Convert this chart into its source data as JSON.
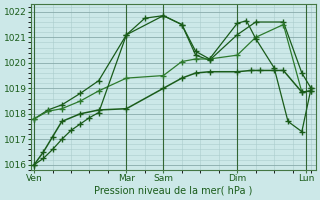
{
  "bg_color": "#cce8e8",
  "grid_color_minor": "#aacccc",
  "grid_color_major": "#88aaaa",
  "line_color": "#1a5c1a",
  "line_color2": "#2d7a2d",
  "ylabel_text": "Pression niveau de la mer( hPa )",
  "ylim": [
    1015.8,
    1022.3
  ],
  "yticks": [
    1016,
    1017,
    1018,
    1019,
    1020,
    1021,
    1022
  ],
  "xlim": [
    -0.3,
    30.5
  ],
  "day_labels": [
    "Ven",
    "Mar",
    "Sam",
    "Dim",
    "Lun"
  ],
  "day_positions": [
    0,
    10,
    14,
    22,
    29.5
  ],
  "vline_positions": [
    0,
    10,
    14,
    22,
    29.5
  ],
  "series": [
    {
      "x": [
        0,
        1.5,
        3,
        5,
        7,
        10,
        14,
        16,
        17.5,
        19,
        22,
        24,
        27,
        29,
        30
      ],
      "y": [
        1017.8,
        1018.15,
        1018.35,
        1018.8,
        1019.3,
        1021.1,
        1021.85,
        1021.5,
        1020.3,
        1020.1,
        1021.1,
        1021.6,
        1021.6,
        1019.6,
        1019.0
      ],
      "style": "-",
      "marker": "+",
      "markersize": 5,
      "lw": 0.9,
      "color": "#1a5c1a"
    },
    {
      "x": [
        0,
        1.5,
        3,
        5,
        7,
        10,
        14,
        16,
        17.5,
        19,
        22,
        24,
        27,
        29,
        30
      ],
      "y": [
        1017.8,
        1018.1,
        1018.2,
        1018.5,
        1018.9,
        1019.4,
        1019.5,
        1020.05,
        1020.15,
        1020.15,
        1020.3,
        1021.0,
        1021.5,
        1018.85,
        1018.9
      ],
      "style": "-",
      "marker": "+",
      "markersize": 4,
      "lw": 0.9,
      "color": "#2d7a2d"
    },
    {
      "x": [
        0,
        1,
        2,
        3,
        5,
        7,
        10,
        14,
        16,
        17.5,
        19,
        22,
        23.5,
        24.5,
        26,
        27,
        29,
        30
      ],
      "y": [
        1016.0,
        1016.5,
        1017.1,
        1017.7,
        1018.0,
        1018.15,
        1018.2,
        1019.0,
        1019.4,
        1019.6,
        1019.65,
        1019.65,
        1019.7,
        1019.7,
        1019.7,
        1019.7,
        1018.85,
        1018.9
      ],
      "style": "-",
      "marker": "+",
      "markersize": 4,
      "lw": 1.1,
      "color": "#1a5c1a"
    },
    {
      "x": [
        0,
        1,
        2,
        3,
        4,
        5,
        6,
        7,
        10,
        12,
        14,
        16,
        17.5,
        19,
        22,
        23,
        24,
        26,
        27.5,
        29,
        30
      ],
      "y": [
        1016.0,
        1016.25,
        1016.6,
        1017.0,
        1017.35,
        1017.6,
        1017.85,
        1018.05,
        1021.1,
        1021.75,
        1021.85,
        1021.5,
        1020.45,
        1020.15,
        1021.55,
        1021.65,
        1020.95,
        1019.8,
        1017.7,
        1017.3,
        1019.0
      ],
      "style": "-",
      "marker": "+",
      "markersize": 5,
      "lw": 0.9,
      "color": "#1a5c1a"
    }
  ]
}
